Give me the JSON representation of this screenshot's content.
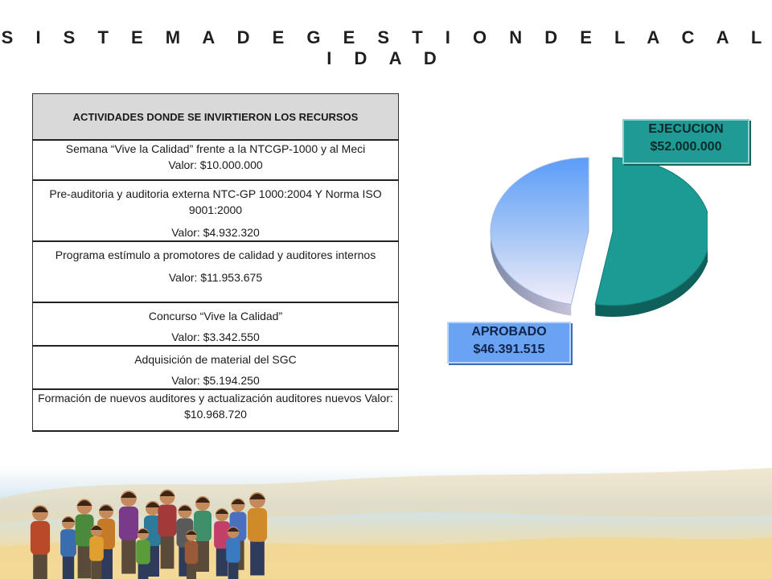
{
  "slide": {
    "title": "S I S T E M A   D E   G E S T I O N   D E   L A   C A L I D A D"
  },
  "activities": {
    "header": "ACTIVIDADES DONDE SE INVIRTIERON LOS RECURSOS",
    "rows": [
      {
        "text": "Semana  “Vive la Calidad” frente a la NTCGP-1000 y al Meci",
        "value": "Valor: $10.000.000"
      },
      {
        "text": "Pre-auditoria y auditoria externa NTC-GP 1000:2004 Y Norma ISO 9001:2000",
        "value": "Valor: $4.932.320"
      },
      {
        "text": "Programa estímulo a promotores de calidad y auditores internos",
        "value": "Valor: $11.953.675"
      },
      {
        "text": "Concurso “Vive la Calidad”",
        "value": "Valor: $3.342.550"
      },
      {
        "text": "Adquisición de material del SGC",
        "value": "Valor: $5.194.250"
      },
      {
        "text": "Formación de nuevos auditores y actualización  auditores nuevos",
        "value": "Valor: $10.968.720"
      }
    ]
  },
  "chart_data": {
    "type": "pie",
    "title": "",
    "slices": [
      {
        "name": "EJECUCION",
        "value": 52000000,
        "label_name": "EJECUCION",
        "label_value": "$52.000.000",
        "color": "#1f9a94",
        "exploded": true
      },
      {
        "name": "APROBADO",
        "value": 46391515,
        "label_name": "APROBADO",
        "label_value": "$46.391.515",
        "color": "#6aa3f2",
        "exploded": false
      }
    ],
    "style": "3d-exploded"
  }
}
